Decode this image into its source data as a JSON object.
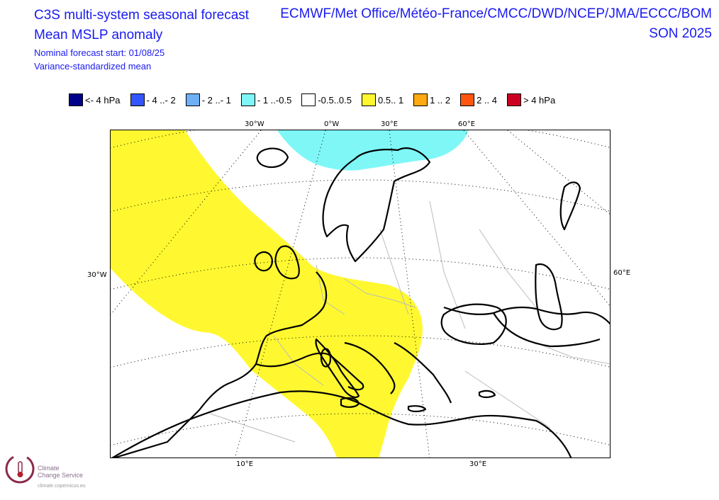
{
  "header": {
    "title_line1": "C3S multi-system seasonal forecast",
    "title_line2": "Mean MSLP anomaly",
    "start_label": "Nominal forecast start: 01/08/25",
    "method_label": "Variance-standardized mean",
    "systems": "ECMWF/Met Office/Météo-France/CMCC/DWD/NCEP/JMA/ECCC/BOM",
    "season": "SON 2025"
  },
  "legend": [
    {
      "label": "<- 4 hPa",
      "color": "#00008b"
    },
    {
      "label": "- 4 ..- 2",
      "color": "#3355ff"
    },
    {
      "label": "- 2 ..- 1",
      "color": "#6fb0f5"
    },
    {
      "label": "- 1 ..-0.5",
      "color": "#7ff7f7"
    },
    {
      "label": "-0.5..0.5",
      "color": "#ffffff"
    },
    {
      "label": "0.5.. 1",
      "color": "#fff830"
    },
    {
      "label": "1 .. 2",
      "color": "#ffaa11"
    },
    {
      "label": "2 .. 4",
      "color": "#ff5511"
    },
    {
      "label": "> 4 hPa",
      "color": "#cc0022"
    }
  ],
  "axis": {
    "top_30w": "30°W",
    "top_0w": "0°W",
    "top_30e": "30°E",
    "top_60e": "60°E",
    "left_30w": "30°W",
    "right_60e": "60°E",
    "bottom_10e": "10°E",
    "bottom_30e": "30°E"
  },
  "logo": {
    "line1": "Climate",
    "line2": "Change Service",
    "url": "climate.copernicus.eu"
  }
}
